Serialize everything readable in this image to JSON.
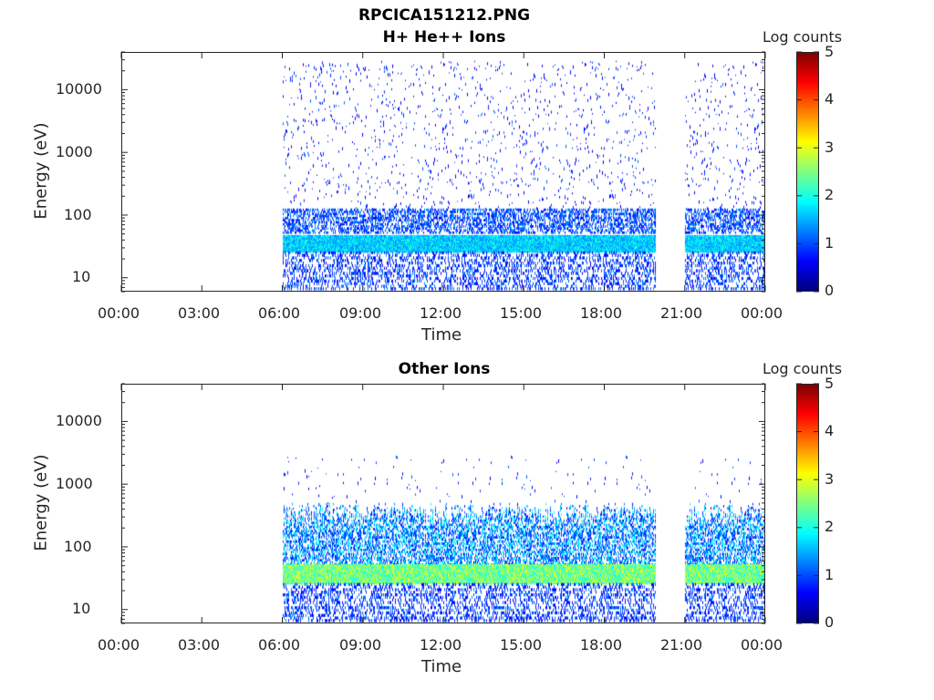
{
  "title": "RPCICA151212.PNG",
  "colormap": [
    "#00007f",
    "#0000ff",
    "#007fff",
    "#00ffff",
    "#7fff7f",
    "#ffff00",
    "#ff7f00",
    "#ff0000",
    "#7f0000"
  ],
  "chart_data": [
    {
      "type": "heatmap",
      "title": "H+ He++ Ions",
      "xlabel": "Time",
      "ylabel": "Energy (eV)",
      "x_ticks": [
        "00:00",
        "03:00",
        "06:00",
        "09:00",
        "12:00",
        "15:00",
        "18:00",
        "21:00",
        "00:00"
      ],
      "x_range_hours": [
        0,
        24
      ],
      "y_scale": "log",
      "y_ticks": [
        "10",
        "100",
        "1000",
        "10000"
      ],
      "y_range": [
        6,
        40000
      ],
      "colorbar": {
        "label": "Log counts",
        "ticks": [
          "0",
          "1",
          "2",
          "3",
          "4",
          "5"
        ],
        "range": [
          0,
          5
        ]
      },
      "data_intervals_hours": [
        [
          6.0,
          19.95
        ],
        [
          21.05,
          24.0
        ]
      ],
      "peak_band_eV": [
        25,
        45
      ],
      "peak_log_counts": 2.0
    },
    {
      "type": "heatmap",
      "title": "Other Ions",
      "xlabel": "Time",
      "ylabel": "Energy (eV)",
      "x_ticks": [
        "00:00",
        "03:00",
        "06:00",
        "09:00",
        "12:00",
        "15:00",
        "18:00",
        "21:00",
        "00:00"
      ],
      "x_range_hours": [
        0,
        24
      ],
      "y_scale": "log",
      "y_ticks": [
        "10",
        "100",
        "1000",
        "10000"
      ],
      "y_range": [
        6,
        40000
      ],
      "colorbar": {
        "label": "Log counts",
        "ticks": [
          "0",
          "1",
          "2",
          "3",
          "4",
          "5"
        ],
        "range": [
          0,
          5
        ]
      },
      "data_intervals_hours": [
        [
          6.0,
          19.95
        ],
        [
          21.05,
          24.0
        ]
      ],
      "peak_band_eV": [
        25,
        50
      ],
      "peak_log_counts": 3.0
    }
  ]
}
